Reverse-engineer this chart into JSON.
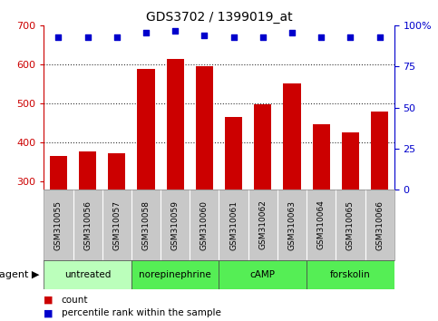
{
  "title": "GDS3702 / 1399019_at",
  "samples": [
    "GSM310055",
    "GSM310056",
    "GSM310057",
    "GSM310058",
    "GSM310059",
    "GSM310060",
    "GSM310061",
    "GSM310062",
    "GSM310063",
    "GSM310064",
    "GSM310065",
    "GSM310066"
  ],
  "bar_values": [
    365,
    378,
    372,
    590,
    614,
    595,
    465,
    498,
    553,
    448,
    427,
    480
  ],
  "percentile_values": [
    93,
    93,
    93,
    96,
    97,
    94,
    93,
    93,
    96,
    93,
    93,
    93
  ],
  "bar_color": "#cc0000",
  "dot_color": "#0000cc",
  "ylim_left": [
    280,
    700
  ],
  "ylim_right": [
    0,
    100
  ],
  "yticks_left": [
    300,
    400,
    500,
    600,
    700
  ],
  "yticks_right": [
    0,
    25,
    50,
    75,
    100
  ],
  "right_tick_labels": [
    "0",
    "25",
    "50",
    "75",
    "100%"
  ],
  "groups": [
    {
      "label": "untreated",
      "start": 0,
      "end": 2,
      "color": "#bbffbb"
    },
    {
      "label": "norepinephrine",
      "start": 3,
      "end": 5,
      "color": "#55ee55"
    },
    {
      "label": "cAMP",
      "start": 6,
      "end": 8,
      "color": "#55ee55"
    },
    {
      "label": "forskolin",
      "start": 9,
      "end": 11,
      "color": "#55ee55"
    }
  ],
  "agent_label": "agent",
  "legend_count_label": "count",
  "legend_pct_label": "percentile rank within the sample",
  "bar_width": 0.6,
  "tick_area_color": "#c8c8c8",
  "background_color": "#ffffff",
  "gridline_ticks": [
    400,
    500,
    600
  ],
  "dotted_line_color": "#333333"
}
